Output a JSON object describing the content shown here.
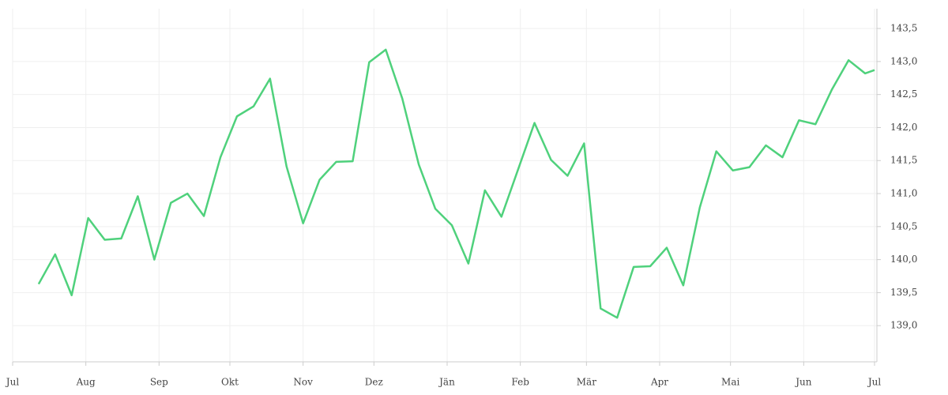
{
  "chart_data": {
    "type": "line",
    "x": [
      11,
      18,
      25,
      32,
      39,
      46,
      53,
      60,
      67,
      74,
      81,
      88,
      95,
      102,
      109,
      116,
      123,
      130,
      137,
      144,
      151,
      158,
      165,
      172,
      179,
      186,
      193,
      200,
      207,
      214,
      221,
      228,
      235,
      242,
      249,
      256,
      263,
      270,
      277,
      284,
      291,
      298,
      305,
      312,
      319,
      326,
      333,
      340,
      347,
      354,
      361,
      365
    ],
    "values": [
      139.63,
      140.08,
      139.46,
      140.63,
      140.3,
      140.32,
      140.96,
      140.0,
      140.86,
      141.0,
      140.66,
      141.55,
      142.17,
      142.32,
      142.74,
      141.41,
      140.55,
      141.21,
      141.48,
      141.49,
      142.99,
      143.18,
      142.44,
      141.44,
      140.77,
      140.52,
      139.94,
      141.05,
      140.65,
      141.36,
      142.07,
      141.51,
      141.27,
      141.76,
      139.26,
      139.12,
      139.89,
      139.9,
      140.18,
      139.61,
      140.79,
      141.64,
      141.35,
      141.4,
      141.73,
      141.55,
      142.11,
      142.05,
      142.58,
      143.02,
      142.82,
      142.87
    ],
    "color": "#4fd17c",
    "xlim": [
      0,
      366
    ],
    "ylim": [
      138.5,
      143.8
    ],
    "xticks": [
      {
        "value": 0,
        "label": "Jul"
      },
      {
        "value": 31,
        "label": "Aug"
      },
      {
        "value": 62,
        "label": "Sep"
      },
      {
        "value": 92,
        "label": "Okt"
      },
      {
        "value": 123,
        "label": "Nov"
      },
      {
        "value": 153,
        "label": "Dez"
      },
      {
        "value": 184,
        "label": "Jän"
      },
      {
        "value": 215,
        "label": "Feb"
      },
      {
        "value": 243,
        "label": "Mär"
      },
      {
        "value": 274,
        "label": "Apr"
      },
      {
        "value": 304,
        "label": "Mai"
      },
      {
        "value": 335,
        "label": "Jun"
      },
      {
        "value": 365,
        "label": "Jul"
      }
    ],
    "yticks": [
      {
        "value": 139,
        "label": "139,0"
      },
      {
        "value": 139.5,
        "label": "139,5"
      },
      {
        "value": 140,
        "label": "140,0"
      },
      {
        "value": 140.5,
        "label": "140,5"
      },
      {
        "value": 141,
        "label": "141,0"
      },
      {
        "value": 141.5,
        "label": "141,5"
      },
      {
        "value": 142,
        "label": "142,0"
      },
      {
        "value": 142.5,
        "label": "142,5"
      },
      {
        "value": 143,
        "label": "143,0"
      },
      {
        "value": 143.5,
        "label": "143,5"
      }
    ],
    "grid": true
  }
}
